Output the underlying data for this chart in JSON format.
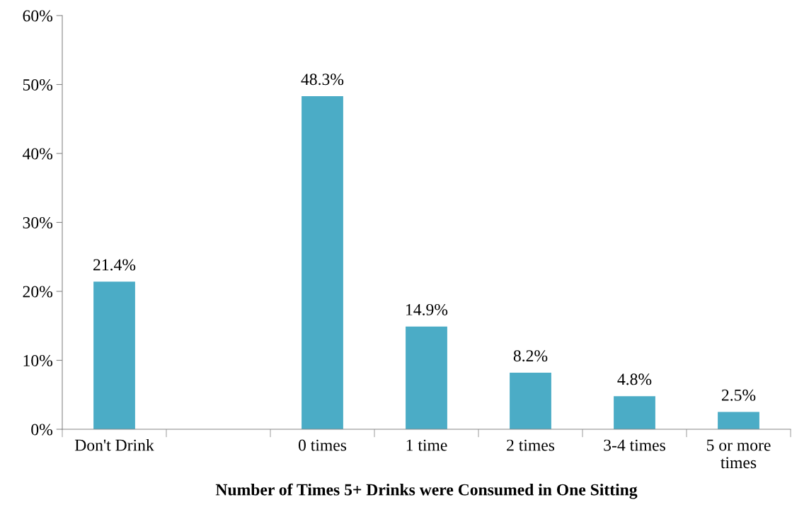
{
  "chart_data": {
    "type": "bar",
    "xlabel": "Number of Times 5+ Drinks were Consumed in One Sitting",
    "categories": [
      "Don't Drink",
      null,
      "0 times",
      "1 time",
      "2 times",
      "3-4 times",
      "5 or more\ntimes"
    ],
    "values": [
      21.4,
      null,
      48.3,
      14.9,
      8.2,
      4.8,
      2.5
    ],
    "value_labels": [
      "21.4%",
      null,
      "48.3%",
      "14.9%",
      "8.2%",
      "4.8%",
      "2.5%"
    ],
    "color": "#4bacc6",
    "ylim": [
      0,
      60
    ],
    "yticks": [
      {
        "value": 0,
        "label": "0%"
      },
      {
        "value": 10,
        "label": "10%"
      },
      {
        "value": 20,
        "label": "20%"
      },
      {
        "value": 30,
        "label": "30%"
      },
      {
        "value": 40,
        "label": "40%"
      },
      {
        "value": 50,
        "label": "50%"
      },
      {
        "value": 60,
        "label": "60%"
      }
    ],
    "grid": false,
    "legend": false
  }
}
